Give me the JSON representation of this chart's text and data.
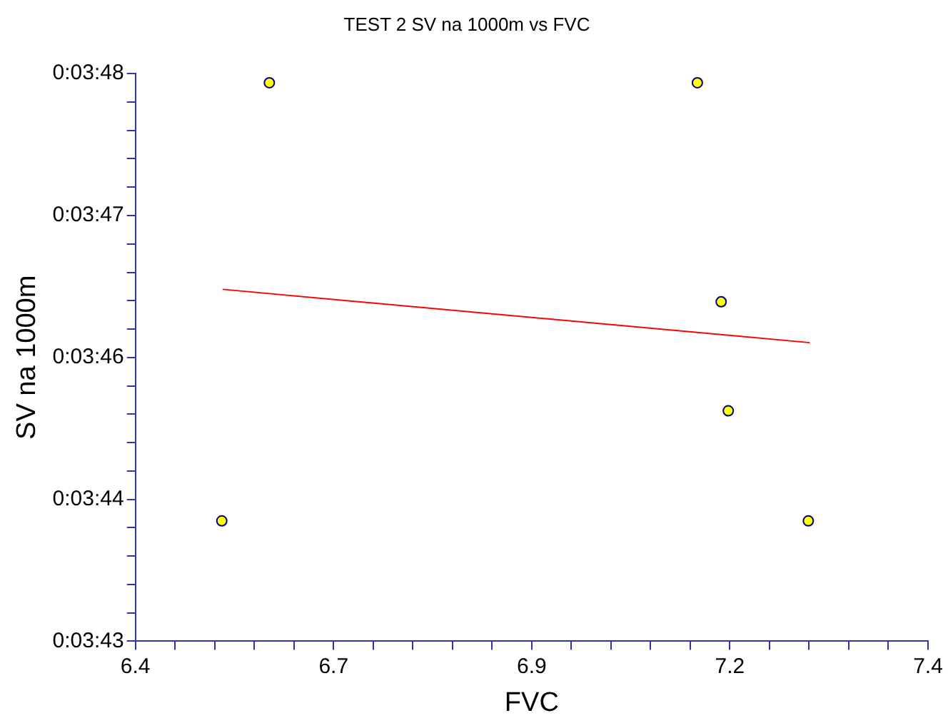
{
  "chart_data": {
    "type": "scatter",
    "title": "TEST 2 SV na 1000m vs FVC",
    "xlabel": "FVC",
    "ylabel": "SV na 1000m",
    "xlim": [
      6.4,
      7.4
    ],
    "ylim": [
      223,
      228
    ],
    "xticks": [
      6.4,
      {
        "value": 6.45,
        "label": null
      },
      {
        "value": 6.5,
        "label": null
      },
      {
        "value": 6.55,
        "label": null
      },
      {
        "value": 6.6,
        "label": null
      },
      {
        "value": 6.65,
        "label": "6.7"
      },
      {
        "value": 6.7,
        "label": null
      },
      {
        "value": 6.75,
        "label": null
      },
      {
        "value": 6.8,
        "label": null
      },
      {
        "value": 6.85,
        "label": null
      },
      6.9,
      {
        "value": 6.95,
        "label": null
      },
      {
        "value": 7.0,
        "label": null
      },
      {
        "value": 7.05,
        "label": null
      },
      {
        "value": 7.1,
        "label": null
      },
      {
        "value": 7.15,
        "label": "7.2"
      },
      {
        "value": 7.2,
        "label": null
      },
      {
        "value": 7.25,
        "label": null
      },
      {
        "value": 7.3,
        "label": null
      },
      {
        "value": 7.35,
        "label": null
      },
      7.4
    ],
    "yticks": [
      {
        "value": 223,
        "label": "0:03:43"
      },
      {
        "value": 223.25,
        "label": null
      },
      {
        "value": 223.5,
        "label": null
      },
      {
        "value": 223.75,
        "label": null
      },
      {
        "value": 224,
        "label": null
      },
      {
        "value": 224.25,
        "label": "0:03:44"
      },
      {
        "value": 224.5,
        "label": null
      },
      {
        "value": 224.75,
        "label": null
      },
      {
        "value": 225,
        "label": null
      },
      {
        "value": 225.25,
        "label": null
      },
      {
        "value": 225.5,
        "label": "0:03:46"
      },
      {
        "value": 225.75,
        "label": null
      },
      {
        "value": 226,
        "label": null
      },
      {
        "value": 226.25,
        "label": null
      },
      {
        "value": 226.5,
        "label": null
      },
      {
        "value": 226.75,
        "label": "0:03:47"
      },
      {
        "value": 227,
        "label": null
      },
      {
        "value": 227.25,
        "label": null
      },
      {
        "value": 227.5,
        "label": null
      },
      {
        "value": 227.75,
        "label": null
      },
      {
        "value": 228,
        "label": "0:03:48"
      }
    ],
    "grid": false,
    "legend": false,
    "marker": "circle",
    "series": [
      {
        "color": "#ffff00",
        "x": [
          6.569,
          7.109,
          7.139,
          7.148,
          6.509,
          7.249
        ],
        "values": [
          227.92,
          227.92,
          225.99,
          225.03,
          224.06,
          224.06
        ]
      },
      {
        "type": "line",
        "color": "#ff0000",
        "marker": "none",
        "x": [
          6.51,
          7.251
        ],
        "values": [
          226.1,
          225.63
        ]
      }
    ]
  }
}
